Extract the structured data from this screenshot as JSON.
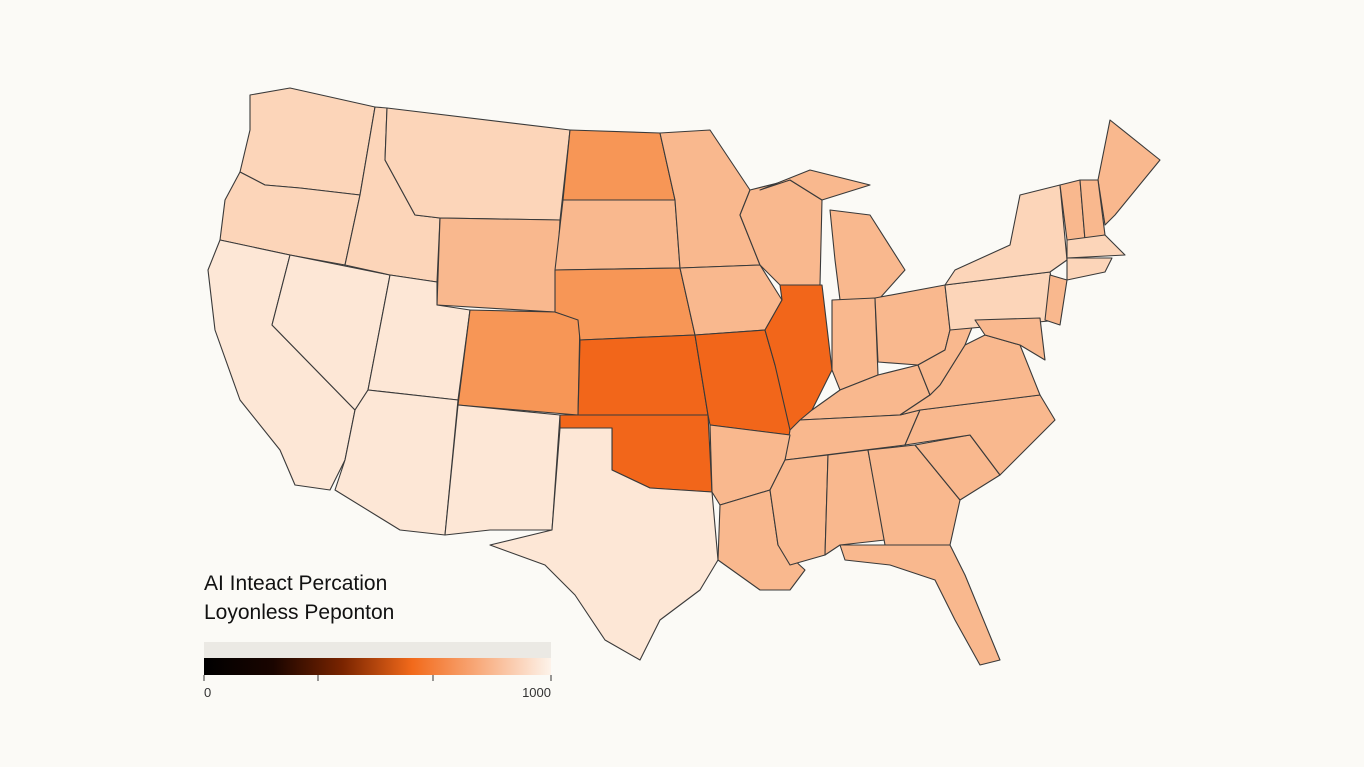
{
  "legend": {
    "title_lines": [
      "AI Inteact Percation",
      "Loyonless Peponton"
    ],
    "ticks": [
      0,
      1000
    ]
  }
}
